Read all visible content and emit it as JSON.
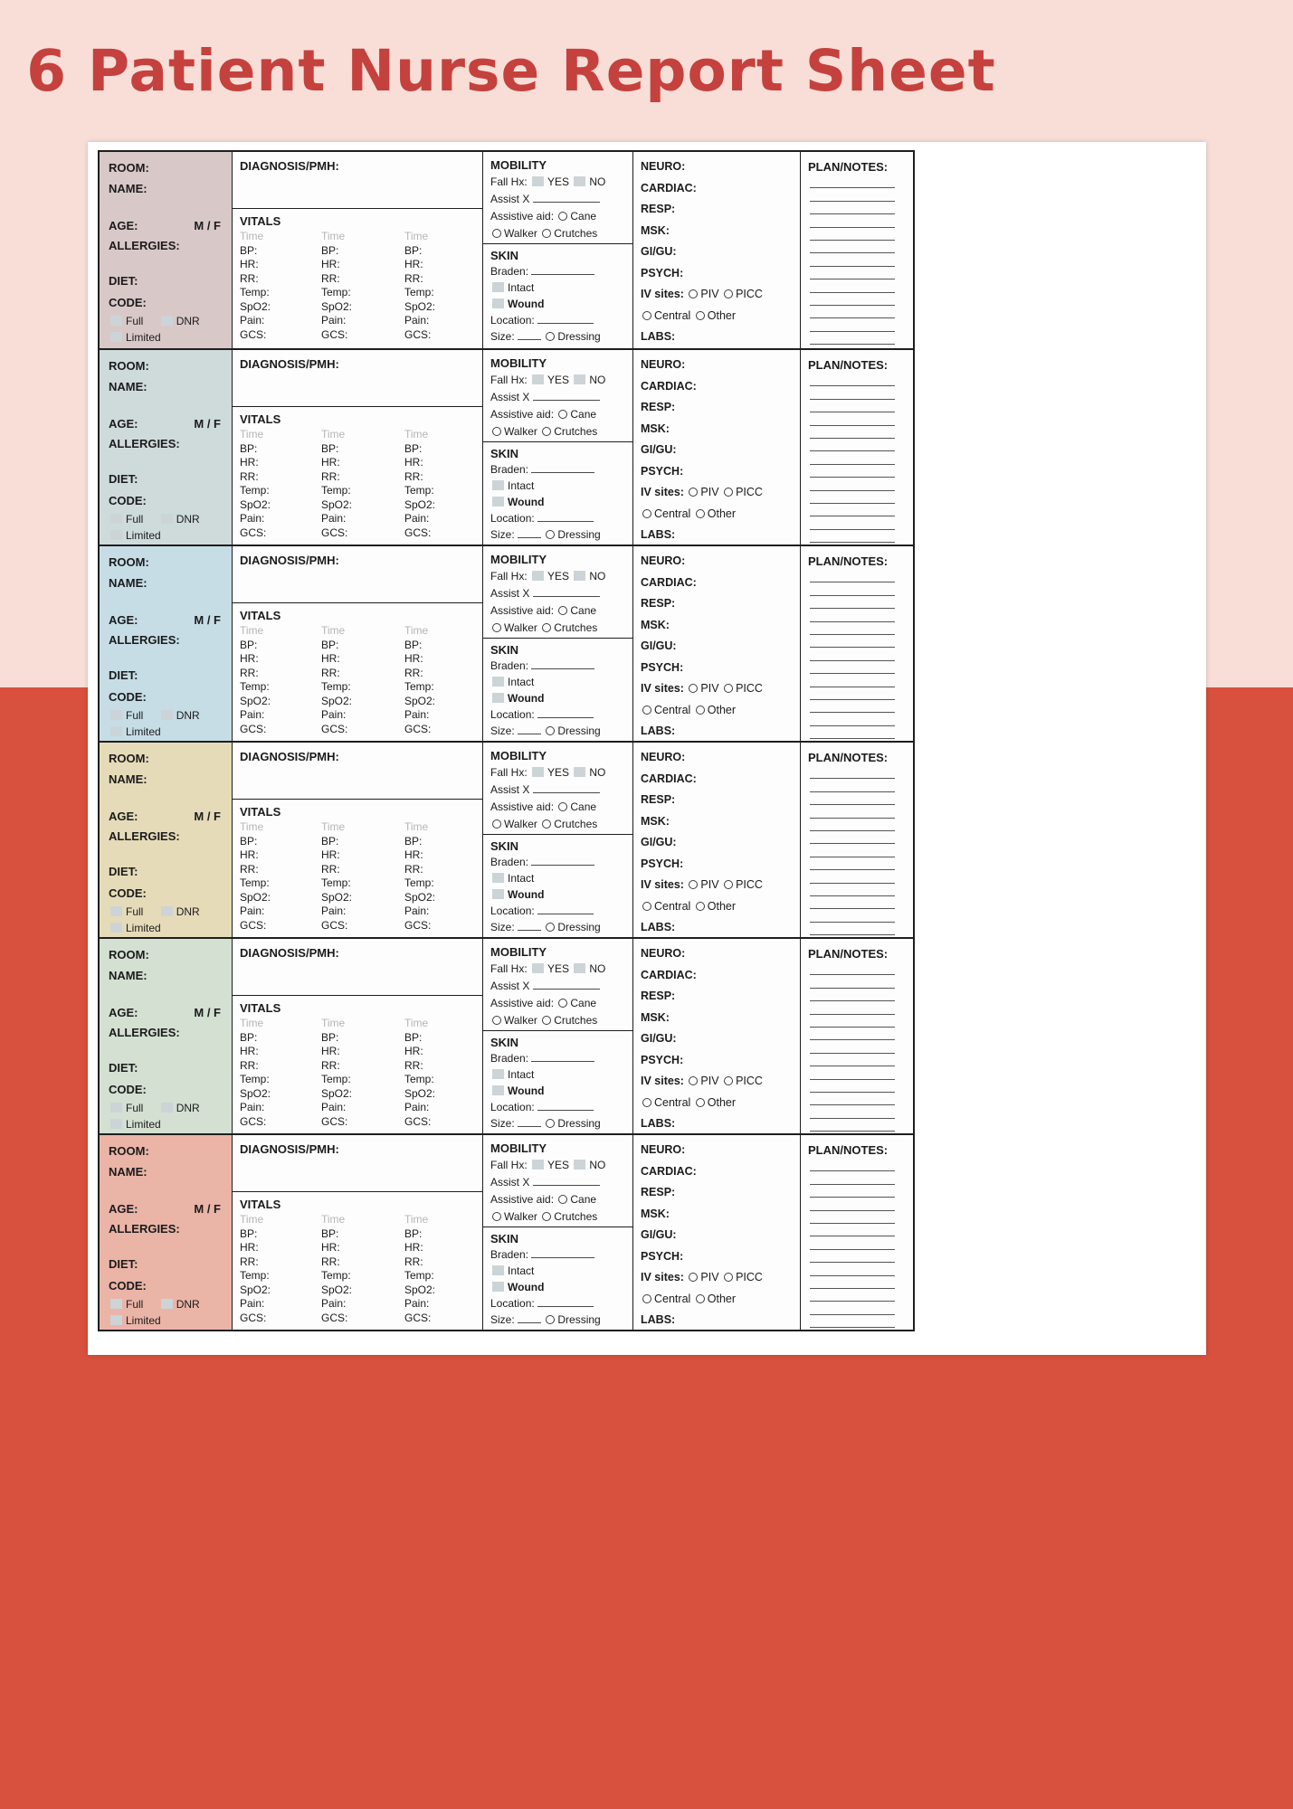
{
  "page": {
    "title": "6 Patient Nurse Report Sheet"
  },
  "colors": {
    "background_top": "#f9ded8",
    "background_bottom": "#d8503e",
    "title_text": "#c5413d",
    "paper": "#ffffff",
    "row_panel_colors": [
      "#d9c8c8",
      "#cfdadb",
      "#c6dde6",
      "#e6dbb8",
      "#d3e0d2",
      "#eab4a7"
    ]
  },
  "row_template": {
    "patient": {
      "room_label": "ROOM:",
      "name_label": "NAME:",
      "age_label": "AGE:",
      "sex_label": "M / F",
      "allergies_label": "ALLERGIES:",
      "diet_label": "DIET:",
      "code_label": "CODE:",
      "code_full": "Full",
      "code_dnr": "DNR",
      "code_limited": "Limited"
    },
    "diagnosis_label": "DIAGNOSIS/PMH:",
    "vitals": {
      "label": "VITALS",
      "time_label": "Time",
      "fields": [
        "BP:",
        "HR:",
        "RR:",
        "Temp:",
        "SpO2:",
        "Pain:",
        "GCS:"
      ]
    },
    "mobility": {
      "label": "MOBILITY",
      "fall_hx_label": "Fall Hx:",
      "yes_label": "YES",
      "no_label": "NO",
      "assist_label": "Assist X",
      "assistive_aid_label": "Assistive aid:",
      "cane_label": "Cane",
      "walker_label": "Walker",
      "crutches_label": "Crutches"
    },
    "skin": {
      "label": "SKIN",
      "braden_label": "Braden:",
      "intact_label": "Intact",
      "wound_label": "Wound",
      "location_label": "Location:",
      "size_label": "Size:",
      "dressing_label": "Dressing"
    },
    "systems": {
      "items": [
        "NEURO:",
        "CARDIAC:",
        "RESP:",
        "MSK:",
        "GI/GU:",
        "PSYCH:"
      ],
      "iv_sites_label": "IV sites:",
      "piv_label": "PIV",
      "picc_label": "PICC",
      "central_label": "Central",
      "other_label": "Other",
      "labs_label": "LABS:"
    },
    "plan": {
      "label": "PLAN/NOTES:",
      "blank_line_count": 13
    }
  }
}
